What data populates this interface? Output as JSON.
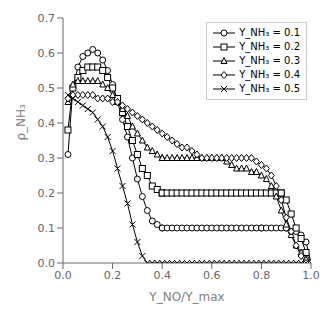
{
  "chart_data": {
    "type": "line",
    "x_label": "Y_NO/Y_max",
    "y_label": "ρ_NH₃",
    "xlim": [
      0.0,
      1.0
    ],
    "ylim": [
      0.0,
      0.7
    ],
    "xticks": [
      {
        "value": 0.0,
        "label": "0.0"
      },
      0.2,
      0.4,
      0.6,
      0.8,
      {
        "value": 1.0,
        "label": "1.0"
      }
    ],
    "yticks": [
      {
        "value": 0.0,
        "label": "0.0"
      },
      0.1,
      0.2,
      0.3,
      0.4,
      0.5,
      0.6,
      0.7
    ],
    "grid": false,
    "legend": "upper right",
    "color": "black",
    "series": [
      {
        "name": "Y_NH₃ = 0.1",
        "marker": "circle",
        "x": [
          0.02,
          0.04,
          0.06,
          0.08,
          0.1,
          0.12,
          0.14,
          0.16,
          0.18,
          0.2,
          0.22,
          0.24,
          0.26,
          0.28,
          0.3,
          0.32,
          0.34,
          0.36,
          0.38,
          0.4,
          0.4,
          0.42,
          0.44,
          0.46,
          0.48,
          0.5,
          0.52,
          0.54,
          0.56,
          0.58,
          0.6,
          0.62,
          0.64,
          0.66,
          0.68,
          0.7,
          0.72,
          0.74,
          0.76,
          0.78,
          0.8,
          0.8,
          0.82,
          0.84,
          0.86,
          0.88,
          0.9,
          0.9,
          0.92,
          0.94,
          0.96,
          0.98,
          1.0
        ],
        "values": [
          0.31,
          0.5,
          0.56,
          0.59,
          0.6,
          0.61,
          0.6,
          0.58,
          0.55,
          0.51,
          0.46,
          0.41,
          0.36,
          0.3,
          0.24,
          0.19,
          0.15,
          0.12,
          0.11,
          0.1,
          0.1,
          0.1,
          0.1,
          0.1,
          0.1,
          0.1,
          0.1,
          0.1,
          0.1,
          0.1,
          0.1,
          0.1,
          0.1,
          0.1,
          0.1,
          0.1,
          0.1,
          0.1,
          0.1,
          0.1,
          0.1,
          0.1,
          0.1,
          0.1,
          0.1,
          0.1,
          0.1,
          0.1,
          0.09,
          0.09,
          0.08,
          0.06,
          0.0
        ]
      },
      {
        "name": "Y_NH₃ = 0.2",
        "marker": "square",
        "x": [
          0.02,
          0.04,
          0.06,
          0.08,
          0.1,
          0.12,
          0.14,
          0.16,
          0.18,
          0.2,
          0.22,
          0.24,
          0.26,
          0.28,
          0.3,
          0.32,
          0.34,
          0.36,
          0.38,
          0.4,
          0.4,
          0.42,
          0.44,
          0.46,
          0.48,
          0.5,
          0.52,
          0.54,
          0.56,
          0.58,
          0.6,
          0.62,
          0.64,
          0.66,
          0.68,
          0.7,
          0.72,
          0.74,
          0.76,
          0.78,
          0.8,
          0.82,
          0.84,
          0.86,
          0.88,
          0.88,
          0.9,
          0.92,
          0.94,
          0.96,
          0.98,
          1.0
        ],
        "values": [
          0.38,
          0.5,
          0.53,
          0.55,
          0.56,
          0.56,
          0.56,
          0.55,
          0.53,
          0.5,
          0.47,
          0.43,
          0.39,
          0.35,
          0.31,
          0.27,
          0.25,
          0.22,
          0.21,
          0.2,
          0.2,
          0.2,
          0.2,
          0.2,
          0.2,
          0.2,
          0.2,
          0.2,
          0.2,
          0.2,
          0.2,
          0.2,
          0.2,
          0.2,
          0.2,
          0.2,
          0.2,
          0.2,
          0.2,
          0.2,
          0.2,
          0.2,
          0.2,
          0.2,
          0.2,
          0.2,
          0.18,
          0.14,
          0.1,
          0.07,
          0.03,
          0.0
        ]
      },
      {
        "name": "Y_NH₃ = 0.3",
        "marker": "triangle",
        "x": [
          0.02,
          0.04,
          0.06,
          0.08,
          0.1,
          0.12,
          0.14,
          0.16,
          0.18,
          0.2,
          0.22,
          0.24,
          0.26,
          0.28,
          0.3,
          0.32,
          0.34,
          0.36,
          0.38,
          0.4,
          0.4,
          0.42,
          0.44,
          0.46,
          0.48,
          0.5,
          0.52,
          0.54,
          0.56,
          0.58,
          0.6,
          0.62,
          0.64,
          0.64,
          0.66,
          0.68,
          0.7,
          0.72,
          0.74,
          0.76,
          0.78,
          0.8,
          0.82,
          0.84,
          0.86,
          0.88,
          0.9,
          0.92,
          0.94,
          0.96,
          0.98,
          1.0
        ],
        "values": [
          0.46,
          0.51,
          0.52,
          0.52,
          0.52,
          0.52,
          0.52,
          0.51,
          0.5,
          0.48,
          0.46,
          0.44,
          0.42,
          0.39,
          0.37,
          0.35,
          0.33,
          0.32,
          0.31,
          0.3,
          0.3,
          0.3,
          0.3,
          0.3,
          0.3,
          0.3,
          0.3,
          0.3,
          0.3,
          0.3,
          0.3,
          0.3,
          0.3,
          0.3,
          0.29,
          0.28,
          0.27,
          0.27,
          0.27,
          0.26,
          0.26,
          0.25,
          0.24,
          0.22,
          0.19,
          0.15,
          0.11,
          0.08,
          0.05,
          0.03,
          0.01,
          0.0
        ]
      },
      {
        "name": "Y_NH₃ = 0.4",
        "marker": "diamond",
        "x": [
          0.02,
          0.04,
          0.06,
          0.08,
          0.1,
          0.12,
          0.14,
          0.16,
          0.18,
          0.2,
          0.22,
          0.24,
          0.26,
          0.28,
          0.3,
          0.32,
          0.34,
          0.36,
          0.38,
          0.4,
          0.42,
          0.44,
          0.46,
          0.48,
          0.5,
          0.52,
          0.54,
          0.56,
          0.58,
          0.6,
          0.62,
          0.64,
          0.66,
          0.68,
          0.7,
          0.72,
          0.74,
          0.76,
          0.78,
          0.8,
          0.82,
          0.84,
          0.86,
          0.88,
          0.9,
          0.92,
          0.94,
          0.96,
          0.98,
          1.0
        ],
        "values": [
          0.47,
          0.48,
          0.48,
          0.48,
          0.48,
          0.48,
          0.47,
          0.47,
          0.47,
          0.46,
          0.46,
          0.45,
          0.44,
          0.43,
          0.42,
          0.41,
          0.4,
          0.39,
          0.38,
          0.37,
          0.36,
          0.35,
          0.34,
          0.33,
          0.33,
          0.32,
          0.31,
          0.3,
          0.3,
          0.3,
          0.3,
          0.3,
          0.3,
          0.3,
          0.3,
          0.3,
          0.3,
          0.3,
          0.29,
          0.28,
          0.27,
          0.25,
          0.22,
          0.18,
          0.13,
          0.09,
          0.05,
          0.02,
          0.0,
          0.0
        ]
      },
      {
        "name": "Y_NH₃ = 0.5",
        "marker": "x",
        "x": [
          0.02,
          0.04,
          0.06,
          0.08,
          0.1,
          0.12,
          0.14,
          0.16,
          0.18,
          0.2,
          0.22,
          0.24,
          0.26,
          0.28,
          0.3,
          0.32,
          0.34,
          0.36,
          0.38,
          0.4,
          0.42,
          0.44,
          0.46,
          0.48,
          0.5,
          0.52,
          0.54,
          0.56,
          0.58,
          0.6,
          0.62,
          0.64,
          0.66,
          0.68,
          0.7,
          0.72,
          0.74,
          0.76,
          0.78,
          0.8,
          0.82,
          0.84,
          0.86,
          0.88,
          0.9,
          0.92,
          0.94,
          0.96,
          0.98,
          1.0
        ],
        "values": [
          0.48,
          0.47,
          0.46,
          0.45,
          0.44,
          0.43,
          0.41,
          0.39,
          0.36,
          0.32,
          0.27,
          0.22,
          0.17,
          0.11,
          0.06,
          0.02,
          0.0,
          0.0,
          0.0,
          0.0,
          0.0,
          0.0,
          0.0,
          0.0,
          0.0,
          0.0,
          0.0,
          0.0,
          0.0,
          0.0,
          0.0,
          0.0,
          0.0,
          0.0,
          0.0,
          0.0,
          0.0,
          0.0,
          0.0,
          0.0,
          0.0,
          0.0,
          0.0,
          0.0,
          0.0,
          0.0,
          0.0,
          0.0,
          0.0,
          0.0
        ]
      }
    ]
  }
}
